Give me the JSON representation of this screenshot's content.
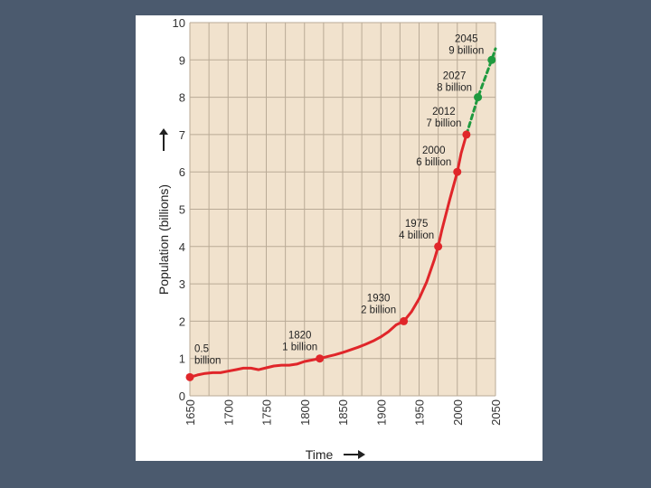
{
  "chart_data": {
    "type": "line",
    "xlabel": "Time",
    "ylabel": "Population (billions)",
    "xlim": [
      1650,
      2050
    ],
    "ylim": [
      0,
      10
    ],
    "grid": true,
    "x_ticks": [
      1650,
      1700,
      1750,
      1800,
      1850,
      1900,
      1950,
      2000,
      2050
    ],
    "y_ticks": [
      0,
      1,
      2,
      3,
      4,
      5,
      6,
      7,
      8,
      9,
      10
    ],
    "colors": {
      "plot_background": "#f1e2cd",
      "grid": "#b9aa96",
      "historical": "#e0262a",
      "projected": "#1f9a3f"
    },
    "series": [
      {
        "style": "solid",
        "color": "#e0262a",
        "points": [
          [
            1650,
            0.5
          ],
          [
            1660,
            0.56
          ],
          [
            1670,
            0.6
          ],
          [
            1680,
            0.62
          ],
          [
            1690,
            0.62
          ],
          [
            1700,
            0.66
          ],
          [
            1710,
            0.7
          ],
          [
            1720,
            0.74
          ],
          [
            1730,
            0.74
          ],
          [
            1740,
            0.7
          ],
          [
            1750,
            0.75
          ],
          [
            1760,
            0.8
          ],
          [
            1770,
            0.82
          ],
          [
            1780,
            0.82
          ],
          [
            1790,
            0.85
          ],
          [
            1800,
            0.92
          ],
          [
            1810,
            0.96
          ],
          [
            1820,
            1.0
          ],
          [
            1830,
            1.05
          ],
          [
            1840,
            1.1
          ],
          [
            1850,
            1.16
          ],
          [
            1860,
            1.23
          ],
          [
            1870,
            1.3
          ],
          [
            1880,
            1.38
          ],
          [
            1890,
            1.47
          ],
          [
            1900,
            1.58
          ],
          [
            1910,
            1.72
          ],
          [
            1920,
            1.9
          ],
          [
            1930,
            2.0
          ],
          [
            1940,
            2.25
          ],
          [
            1950,
            2.6
          ],
          [
            1960,
            3.05
          ],
          [
            1970,
            3.65
          ],
          [
            1975,
            4.0
          ],
          [
            1980,
            4.45
          ],
          [
            1990,
            5.25
          ],
          [
            2000,
            6.0
          ],
          [
            2005,
            6.5
          ],
          [
            2012,
            7.0
          ]
        ]
      },
      {
        "style": "dashed",
        "color": "#1f9a3f",
        "points": [
          [
            2012,
            7.0
          ],
          [
            2027,
            8.0
          ],
          [
            2045,
            9.0
          ],
          [
            2050,
            9.3
          ]
        ]
      }
    ],
    "markers": [
      {
        "x": 1650,
        "y": 0.5,
        "color": "#e0262a"
      },
      {
        "x": 1820,
        "y": 1,
        "color": "#e0262a"
      },
      {
        "x": 1930,
        "y": 2,
        "color": "#e0262a"
      },
      {
        "x": 1975,
        "y": 4,
        "color": "#e0262a"
      },
      {
        "x": 2000,
        "y": 6,
        "color": "#e0262a"
      },
      {
        "x": 2012,
        "y": 7,
        "color": "#e0262a"
      },
      {
        "x": 2027,
        "y": 8,
        "color": "#1f9a3f"
      },
      {
        "x": 2045,
        "y": 9,
        "color": "#1f9a3f"
      }
    ],
    "annotations": [
      {
        "x": 1650,
        "y": 0.5,
        "lines": [
          "0.5",
          "billion"
        ],
        "align": "start"
      },
      {
        "x": 1820,
        "y": 1,
        "lines": [
          "1820",
          "1 billion"
        ],
        "align": "middle"
      },
      {
        "x": 1930,
        "y": 2,
        "lines": [
          "1930",
          "2 billion"
        ],
        "align": "middle"
      },
      {
        "x": 1975,
        "y": 4,
        "lines": [
          "1975",
          "4 billion"
        ],
        "align": "middle"
      },
      {
        "x": 2000,
        "y": 6,
        "lines": [
          "2000",
          "6 billion"
        ],
        "align": "middle"
      },
      {
        "x": 2012,
        "y": 7,
        "lines": [
          "2012",
          "7 billion"
        ],
        "align": "middle"
      },
      {
        "x": 2027,
        "y": 8,
        "lines": [
          "2027",
          "8 billion"
        ],
        "align": "middle"
      },
      {
        "x": 2045,
        "y": 9,
        "lines": [
          "2045",
          "9 billion"
        ],
        "align": "middle"
      }
    ]
  }
}
